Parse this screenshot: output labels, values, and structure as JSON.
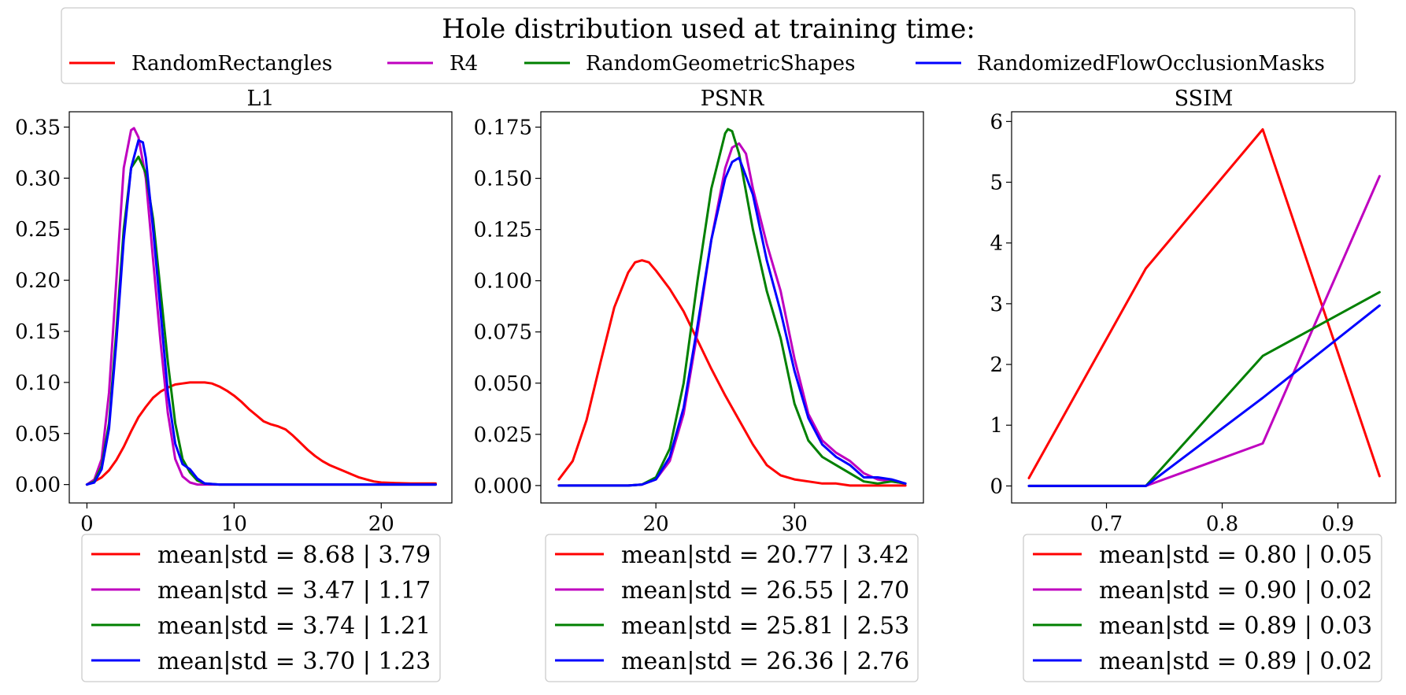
{
  "legend_title": "Hole distribution used at training time:",
  "series_names": [
    "RandomRectangles",
    "R4",
    "RandomGeometricShapes",
    "RandomizedFlowOcclusionMasks"
  ],
  "colors": {
    "RandomRectangles": "#ff0000",
    "R4": "#bf00bf",
    "RandomGeometricShapes": "#008000",
    "RandomizedFlowOcclusionMasks": "#0000ff"
  },
  "chart_data": [
    {
      "type": "line",
      "title": "L1",
      "xlim": [
        -1.2,
        24.8
      ],
      "ylim": [
        -0.018,
        0.365
      ],
      "xticks": [
        0,
        10,
        20
      ],
      "xtick_labels": [
        "0",
        "10",
        "20"
      ],
      "yticks": [
        0,
        0.05,
        0.1,
        0.15,
        0.2,
        0.25,
        0.3,
        0.35
      ],
      "ytick_labels": [
        "0.00",
        "0.05",
        "0.10",
        "0.15",
        "0.20",
        "0.25",
        "0.30",
        "0.35"
      ],
      "series": [
        {
          "name": "RandomRectangles",
          "x": [
            0,
            0.5,
            1,
            1.5,
            2,
            2.5,
            3,
            3.5,
            4,
            4.5,
            5,
            5.5,
            6,
            6.5,
            7,
            7.5,
            8,
            8.5,
            9,
            9.5,
            10,
            10.5,
            11,
            11.5,
            12,
            12.5,
            13,
            13.5,
            14,
            14.5,
            15,
            15.5,
            16,
            16.5,
            17,
            17.5,
            18,
            18.5,
            19,
            19.5,
            20,
            21,
            22,
            23,
            23.7
          ],
          "values": [
            0.0,
            0.003,
            0.007,
            0.014,
            0.024,
            0.037,
            0.052,
            0.066,
            0.076,
            0.085,
            0.091,
            0.095,
            0.098,
            0.099,
            0.1,
            0.1,
            0.1,
            0.099,
            0.096,
            0.092,
            0.087,
            0.081,
            0.074,
            0.068,
            0.062,
            0.059,
            0.057,
            0.054,
            0.048,
            0.041,
            0.034,
            0.028,
            0.023,
            0.019,
            0.016,
            0.013,
            0.01,
            0.007,
            0.005,
            0.003,
            0.002,
            0.0015,
            0.001,
            0.001,
            0.001
          ],
          "legend": "mean|std = 8.68 | 3.79"
        },
        {
          "name": "R4",
          "x": [
            0,
            0.5,
            1,
            1.5,
            2,
            2.5,
            3,
            3.2,
            3.5,
            4,
            4.5,
            5,
            5.5,
            6,
            6.5,
            7,
            7.5,
            8,
            9,
            10,
            15,
            20,
            23.7
          ],
          "values": [
            0.0,
            0.005,
            0.025,
            0.09,
            0.2,
            0.31,
            0.347,
            0.349,
            0.34,
            0.3,
            0.22,
            0.14,
            0.07,
            0.025,
            0.008,
            0.002,
            0.0,
            0.0,
            0.0,
            0.0,
            0.0,
            0.0,
            0.0
          ],
          "legend": "mean|std = 3.47 | 1.17"
        },
        {
          "name": "RandomGeometricShapes",
          "x": [
            0,
            0.5,
            1,
            1.5,
            2,
            2.5,
            3,
            3.5,
            4,
            4.5,
            5,
            5.5,
            6,
            6.5,
            7,
            7.5,
            8,
            9,
            10,
            15,
            20,
            23.7
          ],
          "values": [
            0.0,
            0.003,
            0.018,
            0.06,
            0.15,
            0.25,
            0.31,
            0.321,
            0.305,
            0.26,
            0.19,
            0.12,
            0.06,
            0.025,
            0.012,
            0.004,
            0.001,
            0.0,
            0.0,
            0.0,
            0.0,
            0.0
          ],
          "legend": "mean|std = 3.74 | 1.21"
        },
        {
          "name": "RandomizedFlowOcclusionMasks",
          "x": [
            0,
            0.5,
            1,
            1.5,
            2,
            2.5,
            3,
            3.5,
            3.8,
            4,
            4.5,
            5,
            5.5,
            6,
            6.5,
            7,
            7.5,
            8,
            9,
            10,
            15,
            20,
            23.7
          ],
          "values": [
            0.0,
            0.002,
            0.015,
            0.055,
            0.14,
            0.24,
            0.31,
            0.337,
            0.335,
            0.32,
            0.25,
            0.17,
            0.09,
            0.04,
            0.02,
            0.015,
            0.006,
            0.001,
            0.0,
            0.0,
            0.0,
            0.0,
            0.0
          ],
          "legend": "mean|std = 3.70 | 1.23"
        }
      ]
    },
    {
      "type": "line",
      "title": "PSNR",
      "xlim": [
        11.7,
        39.3
      ],
      "ylim": [
        -0.0085,
        0.1825
      ],
      "xticks": [
        20,
        30
      ],
      "xtick_labels": [
        "20",
        "30"
      ],
      "yticks": [
        0,
        0.025,
        0.05,
        0.075,
        0.1,
        0.125,
        0.15,
        0.175
      ],
      "ytick_labels": [
        "0.000",
        "0.025",
        "0.050",
        "0.075",
        "0.100",
        "0.125",
        "0.150",
        "0.175"
      ],
      "series": [
        {
          "name": "RandomRectangles",
          "x": [
            13,
            14,
            15,
            16,
            17,
            18,
            18.5,
            19,
            19.5,
            20,
            21,
            22,
            23,
            24,
            25,
            26,
            27,
            28,
            29,
            30,
            31,
            32,
            33,
            34,
            35,
            36,
            37,
            38
          ],
          "values": [
            0.003,
            0.012,
            0.032,
            0.06,
            0.087,
            0.104,
            0.109,
            0.11,
            0.109,
            0.105,
            0.096,
            0.085,
            0.071,
            0.057,
            0.044,
            0.032,
            0.02,
            0.01,
            0.005,
            0.003,
            0.002,
            0.001,
            0.001,
            0.0,
            0.0,
            0.0,
            0.0,
            0.0
          ],
          "legend": "mean|std = 20.77 | 3.42"
        },
        {
          "name": "R4",
          "x": [
            13,
            16,
            18,
            19,
            20,
            21,
            22,
            23,
            24,
            25,
            25.5,
            26,
            26.5,
            27,
            28,
            29,
            30,
            31,
            32,
            33,
            34,
            35,
            36,
            37,
            38
          ],
          "values": [
            0.0,
            0.0,
            0.0,
            0.0005,
            0.003,
            0.012,
            0.035,
            0.075,
            0.12,
            0.155,
            0.165,
            0.167,
            0.162,
            0.145,
            0.118,
            0.095,
            0.062,
            0.035,
            0.022,
            0.016,
            0.012,
            0.006,
            0.003,
            0.002,
            0.001
          ],
          "legend": "mean|std = 26.55 | 2.70"
        },
        {
          "name": "RandomGeometricShapes",
          "x": [
            13,
            16,
            18,
            19,
            20,
            21,
            22,
            23,
            24,
            25,
            25.2,
            25.5,
            26,
            27,
            28,
            29,
            30,
            31,
            32,
            33,
            34,
            35,
            36,
            37,
            38
          ],
          "values": [
            0.0,
            0.0,
            0.0,
            0.0005,
            0.004,
            0.018,
            0.05,
            0.1,
            0.145,
            0.172,
            0.174,
            0.173,
            0.162,
            0.125,
            0.095,
            0.072,
            0.04,
            0.022,
            0.014,
            0.01,
            0.006,
            0.002,
            0.001,
            0.002,
            0.001
          ],
          "legend": "mean|std = 25.81 | 2.53"
        },
        {
          "name": "RandomizedFlowOcclusionMasks",
          "x": [
            13,
            16,
            18,
            19,
            20,
            21,
            22,
            23,
            24,
            25,
            25.5,
            26,
            27,
            28,
            29,
            30,
            31,
            32,
            33,
            34,
            35,
            36,
            37,
            38
          ],
          "values": [
            0.0,
            0.0,
            0.0,
            0.0005,
            0.003,
            0.014,
            0.038,
            0.078,
            0.12,
            0.15,
            0.158,
            0.16,
            0.142,
            0.11,
            0.085,
            0.056,
            0.033,
            0.02,
            0.014,
            0.01,
            0.004,
            0.004,
            0.003,
            0.001
          ],
          "legend": "mean|std = 26.36 | 2.76"
        }
      ]
    },
    {
      "type": "line",
      "title": "SSIM",
      "xlim": [
        0.618,
        0.95
      ],
      "ylim": [
        -0.28,
        6.16
      ],
      "xticks": [
        0.7,
        0.8,
        0.9
      ],
      "xtick_labels": [
        "0.7",
        "0.8",
        "0.9"
      ],
      "yticks": [
        0,
        1,
        2,
        3,
        4,
        5,
        6
      ],
      "ytick_labels": [
        "0",
        "1",
        "2",
        "3",
        "4",
        "5",
        "6"
      ],
      "series": [
        {
          "name": "RandomRectangles",
          "x": [
            0.633,
            0.734,
            0.835,
            0.936
          ],
          "values": [
            0.13,
            3.58,
            5.87,
            0.16
          ],
          "legend": "mean|std = 0.80 | 0.05"
        },
        {
          "name": "R4",
          "x": [
            0.633,
            0.734,
            0.835,
            0.936
          ],
          "values": [
            0.0,
            0.0,
            0.7,
            5.1
          ],
          "legend": "mean|std = 0.90 | 0.02"
        },
        {
          "name": "RandomGeometricShapes",
          "x": [
            0.633,
            0.734,
            0.835,
            0.936
          ],
          "values": [
            0.0,
            0.0,
            2.14,
            3.19
          ],
          "legend": "mean|std = 0.89 | 0.03"
        },
        {
          "name": "RandomizedFlowOcclusionMasks",
          "x": [
            0.633,
            0.734,
            0.835,
            0.936
          ],
          "values": [
            0.0,
            0.0,
            1.45,
            2.97
          ],
          "legend": "mean|std = 0.89 | 0.02"
        }
      ]
    }
  ]
}
